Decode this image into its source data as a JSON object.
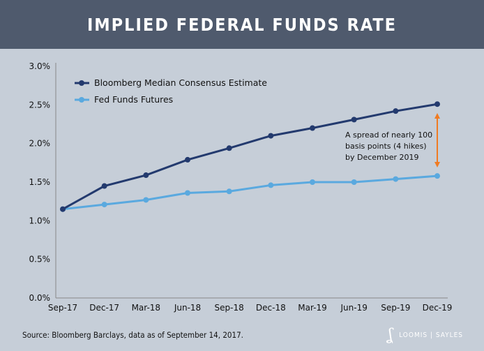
{
  "header": {
    "title": "IMPLIED FEDERAL FUNDS RATE"
  },
  "chart_data": {
    "type": "line",
    "title": "IMPLIED FEDERAL FUNDS RATE",
    "categories": [
      "Sep-17",
      "Dec-17",
      "Mar-18",
      "Jun-18",
      "Sep-18",
      "Dec-18",
      "Mar-19",
      "Jun-19",
      "Sep-19",
      "Dec-19"
    ],
    "yticks": [
      "0.0%",
      "0.5%",
      "1.0%",
      "1.5%",
      "2.0%",
      "2.5%",
      "3.0%"
    ],
    "ylim": [
      0,
      3
    ],
    "grid": false,
    "legend": "top-left",
    "series": [
      {
        "name": "Bloomberg Median Consensus Estimate",
        "color": "#233a6e",
        "values": [
          1.15,
          1.45,
          1.59,
          1.79,
          1.94,
          2.1,
          2.2,
          2.31,
          2.42,
          2.51
        ]
      },
      {
        "name": "Fed Funds Futures",
        "color": "#5aa9df",
        "values": [
          1.15,
          1.21,
          1.27,
          1.36,
          1.38,
          1.46,
          1.5,
          1.5,
          1.54,
          1.58
        ]
      }
    ],
    "annotation": {
      "lines": [
        "A spread of nearly 100",
        "basis points (4 hikes)",
        "by December 2019"
      ],
      "arrow_color": "#f07b22"
    }
  },
  "footer": {
    "source": "Source: Bloomberg Barclays, data as of September 14, 2017.",
    "logo": "LOOMIS | SAYLES"
  }
}
